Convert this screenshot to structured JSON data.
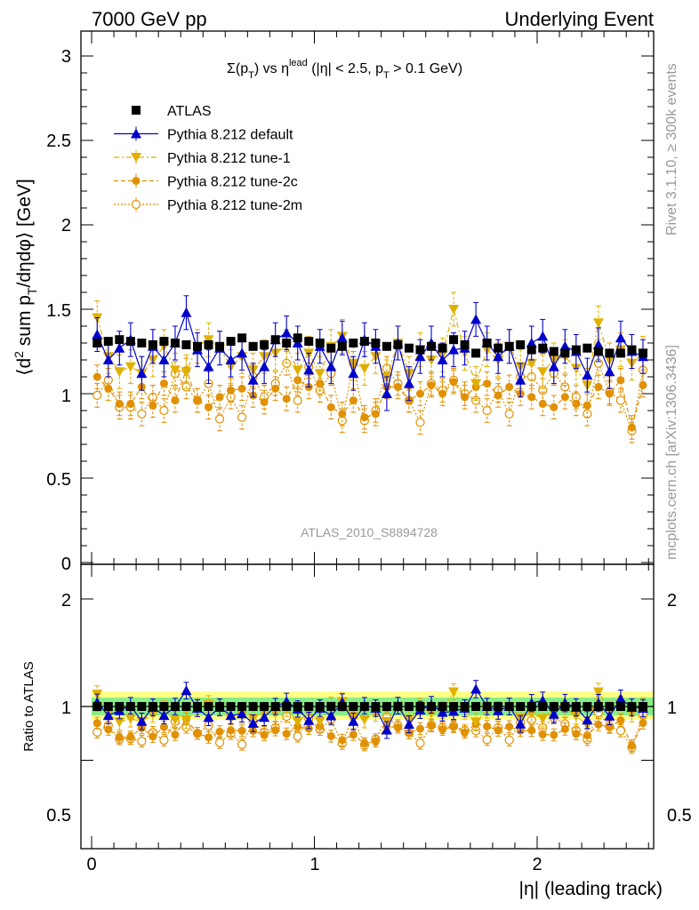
{
  "header": {
    "left": "7000 GeV pp",
    "right": "Underlying Event",
    "side_top": "Rivet 3.1.10, ≥ 300k events",
    "side_bottom": "mcplots.cern.ch [arXiv:1306.3436]"
  },
  "main_plot": {
    "title_parts": {
      "sum": "Σ(p",
      "sum_sub": "T",
      "mid": ") vs η",
      "sup": "lead",
      "rest1": " (|η| < 2.5, p",
      "rest_sub": "T",
      "rest2": " > 0.1 GeV)"
    },
    "ylabel_parts": {
      "a": "⟨d",
      "sup": "2",
      "b": " sum p",
      "sub": "T",
      "c": "/dηdφ⟩ [GeV]"
    },
    "watermark": "ATLAS_2010_S8894728",
    "y_ticks": [
      "0",
      "0.5",
      "1",
      "1.5",
      "2",
      "2.5",
      "3"
    ]
  },
  "ratio_plot": {
    "ylabel": "Ratio to ATLAS",
    "y_ticks_left": [
      "0.5",
      "1",
      "2"
    ],
    "y_ticks_right": [
      "0.5",
      "1",
      "2"
    ]
  },
  "x_axis": {
    "label": "|η| (leading track)",
    "ticks": [
      "0",
      "1",
      "2"
    ]
  },
  "legend": [
    {
      "label": "ATLAS",
      "color": "#000000",
      "marker": "square"
    },
    {
      "label": "Pythia 8.212 default",
      "color": "#0000cc",
      "marker": "triangle-up"
    },
    {
      "label": "Pythia 8.212 tune-1",
      "color": "#e0b000",
      "marker": "triangle-down"
    },
    {
      "label": "Pythia 8.212 tune-2c",
      "color": "#e09000",
      "marker": "circle"
    },
    {
      "label": "Pythia 8.212 tune-2m",
      "color": "#e09000",
      "marker": "circle-open"
    }
  ],
  "chart_data": {
    "type": "scatter",
    "xlim": [
      -0.05,
      2.55
    ],
    "ylim": [
      0,
      3.1
    ],
    "ratio_ylim": [
      0.35,
      2.3
    ],
    "grid": false,
    "legend_position": "top-left",
    "x": [
      0.025,
      0.075,
      0.125,
      0.175,
      0.225,
      0.275,
      0.325,
      0.375,
      0.425,
      0.475,
      0.525,
      0.575,
      0.625,
      0.675,
      0.725,
      0.775,
      0.825,
      0.875,
      0.925,
      0.975,
      1.025,
      1.075,
      1.125,
      1.175,
      1.225,
      1.275,
      1.325,
      1.375,
      1.425,
      1.475,
      1.525,
      1.575,
      1.625,
      1.675,
      1.725,
      1.775,
      1.825,
      1.875,
      1.925,
      1.975,
      2.025,
      2.075,
      2.125,
      2.175,
      2.225,
      2.275,
      2.325,
      2.375,
      2.425,
      2.475
    ],
    "series": [
      {
        "name": "ATLAS",
        "values": [
          1.3,
          1.31,
          1.32,
          1.31,
          1.3,
          1.29,
          1.31,
          1.3,
          1.29,
          1.28,
          1.29,
          1.28,
          1.31,
          1.33,
          1.28,
          1.29,
          1.32,
          1.3,
          1.33,
          1.31,
          1.3,
          1.27,
          1.28,
          1.3,
          1.31,
          1.3,
          1.28,
          1.29,
          1.27,
          1.26,
          1.28,
          1.27,
          1.32,
          1.29,
          1.24,
          1.3,
          1.27,
          1.28,
          1.29,
          1.26,
          1.27,
          1.25,
          1.24,
          1.26,
          1.27,
          1.25,
          1.24,
          1.24,
          1.26,
          1.24
        ]
      },
      {
        "name": "Pythia 8.212 default",
        "values": [
          1.35,
          1.2,
          1.27,
          1.32,
          1.12,
          1.28,
          1.2,
          1.3,
          1.48,
          1.26,
          1.16,
          1.27,
          1.2,
          1.24,
          1.08,
          1.16,
          1.32,
          1.36,
          1.3,
          1.14,
          1.28,
          1.16,
          1.33,
          1.12,
          1.32,
          1.28,
          1.0,
          1.3,
          1.06,
          1.22,
          1.3,
          1.2,
          1.26,
          1.27,
          1.44,
          1.3,
          1.22,
          1.28,
          1.08,
          1.3,
          1.34,
          1.16,
          1.28,
          1.25,
          1.11,
          1.29,
          1.13,
          1.33,
          1.25,
          1.22
        ]
      },
      {
        "name": "Pythia 8.212 tune-1",
        "values": [
          1.45,
          1.22,
          1.13,
          1.16,
          1.12,
          1.2,
          1.28,
          1.14,
          1.13,
          1.28,
          1.32,
          1.27,
          1.16,
          1.22,
          1.14,
          1.22,
          1.24,
          1.28,
          1.14,
          1.24,
          1.12,
          1.28,
          1.34,
          1.18,
          1.15,
          1.22,
          1.1,
          1.3,
          1.12,
          1.26,
          1.2,
          1.23,
          1.5,
          1.24,
          1.06,
          1.26,
          1.2,
          1.28,
          1.16,
          1.18,
          1.13,
          1.2,
          1.22,
          1.15,
          1.05,
          1.42,
          1.2,
          1.26,
          1.18,
          1.24
        ]
      },
      {
        "name": "Pythia 8.212 tune-2c",
        "values": [
          1.1,
          1.03,
          0.94,
          0.94,
          1.04,
          0.93,
          1.06,
          0.96,
          1.14,
          0.96,
          0.92,
          0.98,
          1.02,
          1.03,
          0.99,
          0.95,
          1.03,
          0.97,
          1.08,
          1.04,
          1.06,
          0.92,
          0.88,
          0.96,
          0.86,
          0.88,
          1.04,
          1.04,
          0.96,
          1.0,
          1.05,
          1.0,
          1.07,
          0.98,
          1.04,
          1.06,
          0.99,
          1.04,
          1.0,
          0.98,
          0.94,
          0.92,
          0.98,
          0.94,
          0.93,
          1.04,
          1.0,
          1.08,
          0.8,
          1.05
        ]
      },
      {
        "name": "Pythia 8.212 tune-2m",
        "values": [
          0.99,
          1.08,
          0.92,
          0.92,
          0.88,
          0.98,
          0.9,
          1.12,
          1.04,
          0.96,
          1.06,
          0.85,
          0.98,
          0.86,
          1.1,
          0.98,
          1.06,
          1.18,
          0.96,
          1.16,
          1.02,
          1.12,
          0.84,
          1.18,
          0.84,
          0.9,
          1.15,
          1.06,
          0.96,
          0.83,
          1.06,
          1.02,
          1.08,
          1.0,
          0.96,
          0.9,
          1.02,
          0.88,
          1.1,
          1.1,
          1.02,
          1.12,
          1.04,
          0.98,
          0.88,
          1.18,
          1.01,
          0.96,
          0.78,
          1.14
        ]
      }
    ]
  }
}
